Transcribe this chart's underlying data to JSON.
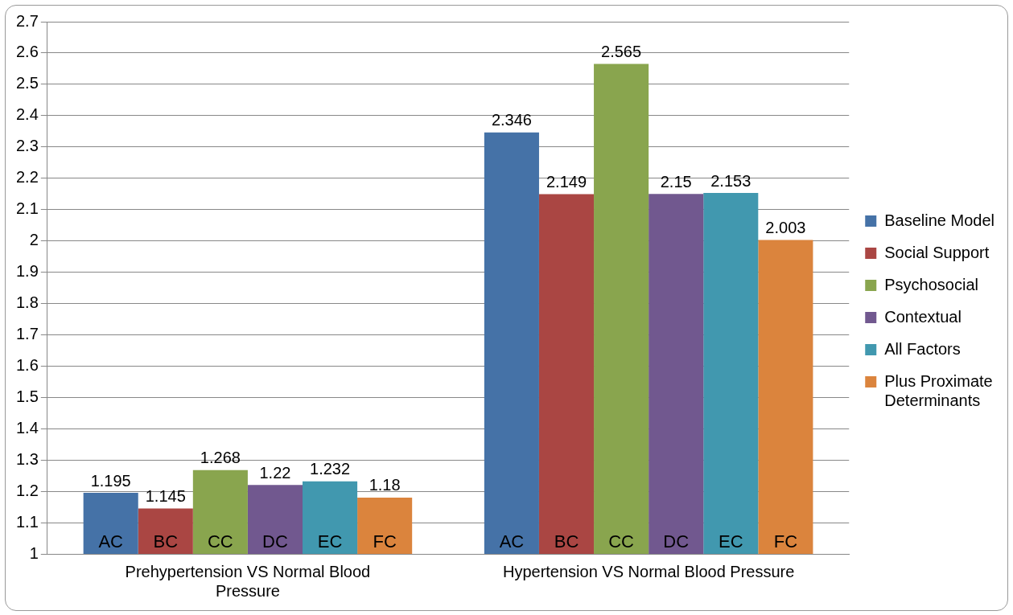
{
  "chart_data": {
    "type": "bar",
    "categories": [
      "Prehypertension VS Normal Blood Pressure",
      "Hypertension VS Normal Blood Pressure"
    ],
    "series": [
      {
        "name": "Baseline Model",
        "color": "#4572a7",
        "values": [
          1.195,
          2.346
        ]
      },
      {
        "name": "Social Support",
        "color": "#aa4643",
        "values": [
          1.145,
          2.149
        ]
      },
      {
        "name": "Psychosocial",
        "color": "#89a54e",
        "values": [
          1.268,
          2.565
        ]
      },
      {
        "name": "Contextual",
        "color": "#71588f",
        "values": [
          1.22,
          2.15
        ]
      },
      {
        "name": "All Factors",
        "color": "#4198af",
        "values": [
          1.232,
          2.153
        ]
      },
      {
        "name": "Plus Proximate Determinants",
        "color": "#db843d",
        "values": [
          1.18,
          2.003
        ]
      }
    ],
    "ylim": [
      1,
      2.7
    ],
    "yticks": [
      1,
      1.1,
      1.2,
      1.3,
      1.4,
      1.5,
      1.6,
      1.7,
      1.8,
      1.9,
      2,
      2.1,
      2.2,
      2.3,
      2.4,
      2.5,
      2.6,
      2.7
    ],
    "grid": "y",
    "legend": "right",
    "data_labels": true,
    "annotations": [
      "AC",
      "BC",
      "CC",
      "DC",
      "EC",
      "FC",
      "AC",
      "BC",
      "CC",
      "DC",
      "EC",
      "FC"
    ]
  }
}
